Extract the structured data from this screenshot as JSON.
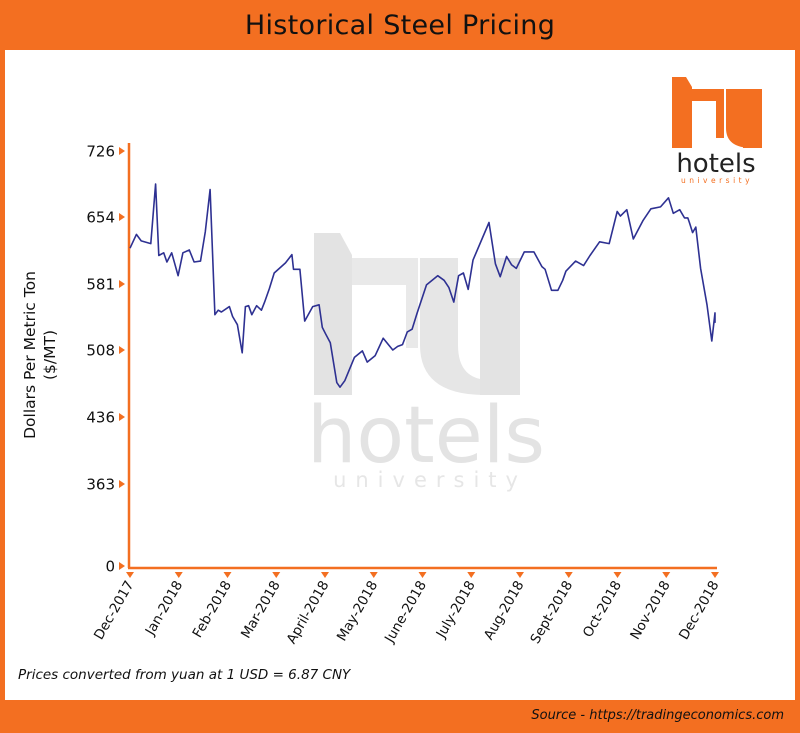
{
  "title": "Historical Steel Pricing",
  "note": "Prices converted from yuan at 1 USD = 6.87 CNY",
  "source": "Source - https://tradingeconomics.com",
  "logo": {
    "brand": "hotels",
    "sub": "university",
    "icon": "hu-monogram-icon"
  },
  "watermark": {
    "brand": "hotels",
    "sub": "university"
  },
  "colors": {
    "frame": "#f36f21",
    "line": "#2e3192",
    "axis": "#f36f21",
    "watermark": "#e3e3e3"
  },
  "chart_data": {
    "type": "line",
    "title": "Historical Steel Pricing",
    "ylabel_lines": [
      "Dollars Per Metric Ton",
      "($/MT)"
    ],
    "xlabel": "",
    "ylim": [
      0,
      726
    ],
    "y_scale": "piecewise",
    "y_ticks": [
      0,
      363,
      436,
      508,
      581,
      654,
      726
    ],
    "y_tick_labels": [
      "0",
      "363",
      "436",
      "508",
      "581",
      "654",
      "726"
    ],
    "x_ticks": [
      "Dec-2017",
      "Jan-2018",
      "Feb-2018",
      "Mar-2018",
      "April-2018",
      "May-2018",
      "June-2018",
      "July-2018",
      "Aug-2018",
      "Sept-2018",
      "Oct-2018",
      "Nov-2018",
      "Dec-2018"
    ],
    "grid": false,
    "legend": "none",
    "series": [
      {
        "x": [
          "2017-12-01",
          "2017-12-05",
          "2017-12-08",
          "2017-12-14",
          "2017-12-17",
          "2017-12-19",
          "2017-12-22",
          "2017-12-24",
          "2017-12-27",
          "2017-12-31",
          "2018-01-03",
          "2018-01-07",
          "2018-01-10",
          "2018-01-14",
          "2018-01-17",
          "2018-01-20",
          "2018-01-23",
          "2018-01-25",
          "2018-01-27",
          "2018-02-01",
          "2018-02-03",
          "2018-02-06",
          "2018-02-09",
          "2018-02-11",
          "2018-02-13",
          "2018-02-15",
          "2018-02-18",
          "2018-02-21",
          "2018-02-23",
          "2018-02-26",
          "2018-03-01",
          "2018-03-08",
          "2018-03-12",
          "2018-03-13",
          "2018-03-17",
          "2018-03-20",
          "2018-03-25",
          "2018-03-29",
          "2018-03-31",
          "2018-04-02",
          "2018-04-05",
          "2018-04-09",
          "2018-04-11",
          "2018-04-14",
          "2018-04-20",
          "2018-04-25",
          "2018-04-28",
          "2018-05-03",
          "2018-05-08",
          "2018-05-14",
          "2018-05-17",
          "2018-05-20",
          "2018-05-23",
          "2018-05-26",
          "2018-05-29",
          "2018-06-04",
          "2018-06-11",
          "2018-06-15",
          "2018-06-18",
          "2018-06-21",
          "2018-06-24",
          "2018-06-27",
          "2018-06-30",
          "2018-07-03",
          "2018-07-13",
          "2018-07-17",
          "2018-07-20",
          "2018-07-24",
          "2018-07-27",
          "2018-07-30",
          "2018-08-04",
          "2018-08-10",
          "2018-08-15",
          "2018-08-17",
          "2018-08-21",
          "2018-08-25",
          "2018-08-28",
          "2018-08-30",
          "2018-09-05",
          "2018-09-10",
          "2018-09-14",
          "2018-09-20",
          "2018-09-26",
          "2018-10-01",
          "2018-10-03",
          "2018-10-07",
          "2018-10-11",
          "2018-10-17",
          "2018-10-22",
          "2018-10-28",
          "2018-11-02",
          "2018-11-05",
          "2018-11-09",
          "2018-11-12",
          "2018-11-14",
          "2018-11-15",
          "2018-11-17",
          "2018-11-19",
          "2018-11-22",
          "2018-11-26",
          "2018-11-29",
          "2018-12-01",
          "2018-12-01"
        ],
        "y": [
          620,
          635,
          628,
          625,
          690,
          612,
          615,
          605,
          615,
          590,
          615,
          618,
          605,
          606,
          638,
          684,
          547,
          552,
          550,
          556,
          545,
          536,
          505,
          556,
          557,
          547,
          557,
          552,
          561,
          576,
          593,
          604,
          613,
          597,
          597,
          540,
          556,
          558,
          533,
          526,
          516,
          473,
          468,
          475,
          500,
          507,
          495,
          502,
          521,
          508,
          512,
          514,
          528,
          531,
          548,
          580,
          590,
          585,
          577,
          561,
          590,
          593,
          575,
          607,
          648,
          603,
          589,
          611,
          602,
          598,
          616,
          616,
          600,
          597,
          574,
          574,
          585,
          595,
          606,
          601,
          612,
          627,
          625,
          660,
          655,
          662,
          630,
          650,
          663,
          665,
          675,
          658,
          662,
          653,
          653,
          648,
          637,
          643,
          598,
          558,
          518,
          549,
          538
        ]
      }
    ]
  }
}
